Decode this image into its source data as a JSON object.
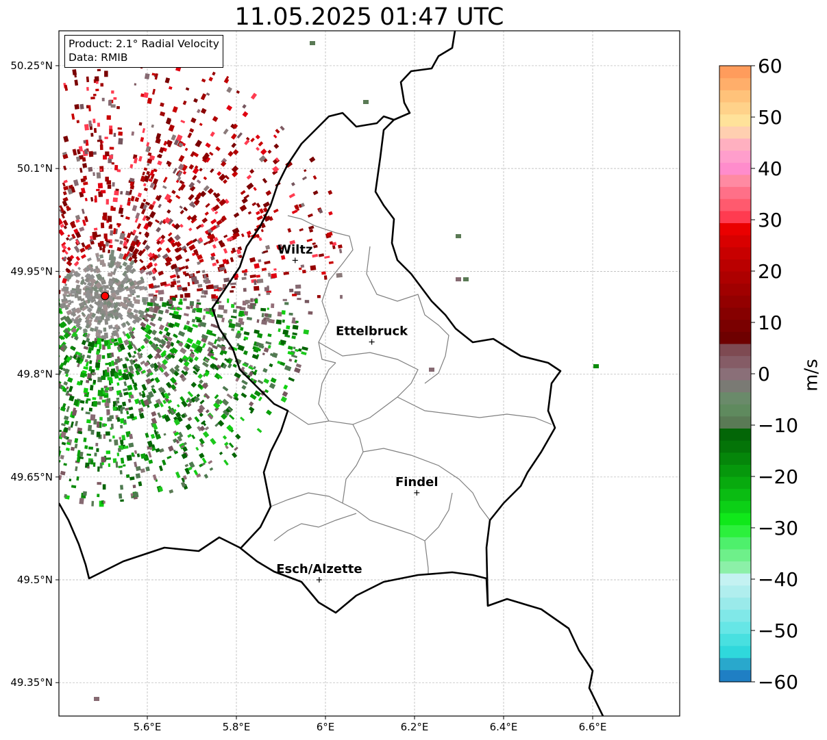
{
  "title": "11.05.2025 01:47 UTC",
  "info": {
    "product": "Product: 2.1° Radial Velocity",
    "data": "Data: RMIB"
  },
  "map": {
    "lon_range": [
      5.4,
      6.8
    ],
    "lat_range": [
      49.3,
      50.3
    ],
    "lon_ticks": [
      "5.6°E",
      "5.8°E",
      "6°E",
      "6.2°E",
      "6.4°E",
      "6.6°E"
    ],
    "lat_ticks": [
      "50.25°N",
      "50.1°N",
      "49.95°N",
      "49.8°N",
      "49.65°N",
      "49.5°N",
      "49.35°N"
    ],
    "radar_site": {
      "lon": 5.505,
      "lat": 49.914
    },
    "cities": [
      {
        "name": "Wiltz",
        "lon": 5.932,
        "lat": 49.966
      },
      {
        "name": "Ettelbruck",
        "lon": 6.104,
        "lat": 49.847
      },
      {
        "name": "Findel",
        "lon": 6.205,
        "lat": 49.627
      },
      {
        "name": "Esch/Alzette",
        "lon": 5.986,
        "lat": 49.5
      }
    ],
    "colors": {
      "border": "#000000",
      "admin": "#7f7f7f",
      "grid": "#b0b0b0",
      "radar_site": "#ff0000"
    }
  },
  "colorbar": {
    "label": "m/s",
    "ticks": [
      "60",
      "50",
      "40",
      "30",
      "20",
      "10",
      "0",
      "−10",
      "−20",
      "−30",
      "−40",
      "−50",
      "−60"
    ],
    "range": [
      -60,
      60
    ],
    "colors": [
      "#1f7fc4",
      "#29a8cc",
      "#2fd8dc",
      "#48e0e0",
      "#66e6e6",
      "#80e8e8",
      "#9aeaea",
      "#b0eeee",
      "#c4f2f2",
      "#8cf0a8",
      "#6ef08a",
      "#4ef06c",
      "#2cf03c",
      "#10e81a",
      "#0cd016",
      "#0abc12",
      "#08aa0e",
      "#06980c",
      "#05860a",
      "#047408",
      "#036607",
      "#5a7a55",
      "#5f8a5e",
      "#6a8a6a",
      "#7a7a74",
      "#8a6f78",
      "#855c66",
      "#7e4a52",
      "#6e0000",
      "#7a0000",
      "#860000",
      "#930000",
      "#a00000",
      "#ad0000",
      "#ba0000",
      "#c80000",
      "#d80000",
      "#ea0000",
      "#ff3b50",
      "#ff5a6e",
      "#ff7088",
      "#ff8aa2",
      "#ff8ccc",
      "#ff9ecc",
      "#ffb0c0",
      "#ffcfb0",
      "#ffe29a",
      "#ffd28a",
      "#ffc27a",
      "#ffae6a",
      "#ff9c5c"
    ]
  }
}
